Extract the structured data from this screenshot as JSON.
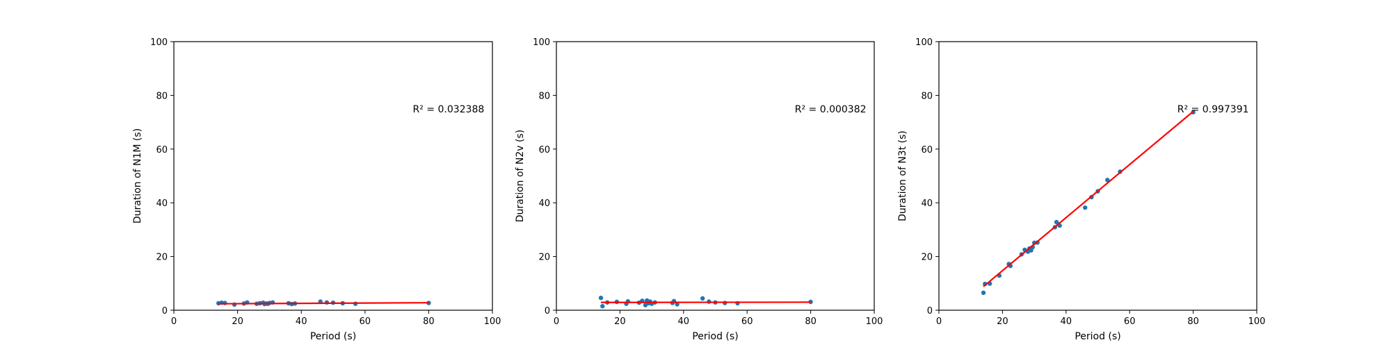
{
  "chart_data": [
    {
      "type": "scatter",
      "xlabel": "Period (s)",
      "ylabel": "Duration of N1M (s)",
      "xlim": [
        0,
        100
      ],
      "ylim": [
        0,
        100
      ],
      "xticks": [
        "0",
        "20",
        "40",
        "60",
        "80",
        "100"
      ],
      "yticks": [
        "0",
        "20",
        "40",
        "60",
        "80",
        "100"
      ],
      "grid": false,
      "annotation": "R² = 0.032388",
      "point_color": "#1f77b4",
      "fit_color": "#ff0000",
      "points": {
        "x": [
          14,
          15,
          16,
          19,
          22,
          23,
          26,
          27,
          28,
          28.5,
          29,
          29.5,
          30,
          31,
          36,
          37,
          38,
          46,
          48,
          50,
          53,
          57,
          80
        ],
        "y": [
          2.6,
          2.8,
          2.7,
          2.1,
          2.5,
          2.9,
          2.4,
          2.6,
          2.8,
          2.3,
          2.5,
          2.4,
          2.7,
          2.9,
          2.6,
          2.3,
          2.5,
          3.2,
          2.9,
          2.8,
          2.6,
          2.4,
          2.7
        ]
      },
      "fit_line": {
        "x": [
          14,
          80
        ],
        "y": [
          2.4,
          2.8
        ]
      }
    },
    {
      "type": "scatter",
      "xlabel": "Period (s)",
      "ylabel": "Duration of N2v (s)",
      "xlim": [
        0,
        100
      ],
      "ylim": [
        0,
        100
      ],
      "xticks": [
        "0",
        "20",
        "40",
        "60",
        "80",
        "100"
      ],
      "yticks": [
        "0",
        "20",
        "40",
        "60",
        "80",
        "100"
      ],
      "grid": false,
      "annotation": "R² = 0.000382",
      "point_color": "#1f77b4",
      "fit_color": "#ff0000",
      "points": {
        "x": [
          14,
          14.5,
          16,
          19,
          22,
          22.5,
          26,
          27,
          28,
          28.5,
          29,
          29.5,
          30,
          31,
          36.5,
          37,
          38,
          46,
          48,
          50,
          53,
          57,
          80
        ],
        "y": [
          4.6,
          1.5,
          2.9,
          3.1,
          2.4,
          3.3,
          2.8,
          3.5,
          1.9,
          3.6,
          2.6,
          3.2,
          2.4,
          2.9,
          2.7,
          3.4,
          2.2,
          4.4,
          3.2,
          2.9,
          2.7,
          2.6,
          3.1
        ]
      },
      "fit_line": {
        "x": [
          14,
          80
        ],
        "y": [
          2.9,
          3.0
        ]
      }
    },
    {
      "type": "scatter",
      "xlabel": "Period (s)",
      "ylabel": "Duration of N3t (s)",
      "xlim": [
        0,
        100
      ],
      "ylim": [
        0,
        100
      ],
      "xticks": [
        "0",
        "20",
        "40",
        "60",
        "80",
        "100"
      ],
      "yticks": [
        "0",
        "20",
        "40",
        "60",
        "80",
        "100"
      ],
      "grid": false,
      "annotation": "R² = 0.997391",
      "point_color": "#1f77b4",
      "fit_color": "#ff0000",
      "points": {
        "x": [
          14,
          14.5,
          16,
          19,
          22,
          22.5,
          26,
          27,
          28,
          28.5,
          29,
          29.5,
          30,
          31,
          36.5,
          37,
          38,
          46,
          48,
          50,
          53,
          57,
          80
        ],
        "y": [
          6.5,
          9.8,
          9.9,
          12.9,
          17.2,
          16.5,
          20.8,
          22.5,
          21.8,
          23.0,
          22.3,
          23.5,
          25.1,
          25.2,
          30.9,
          32.8,
          31.5,
          38.2,
          42.1,
          44.3,
          48.5,
          51.6,
          73.7
        ]
      },
      "fit_line": {
        "x": [
          14,
          80
        ],
        "y": [
          8.8,
          74.0
        ]
      }
    }
  ]
}
